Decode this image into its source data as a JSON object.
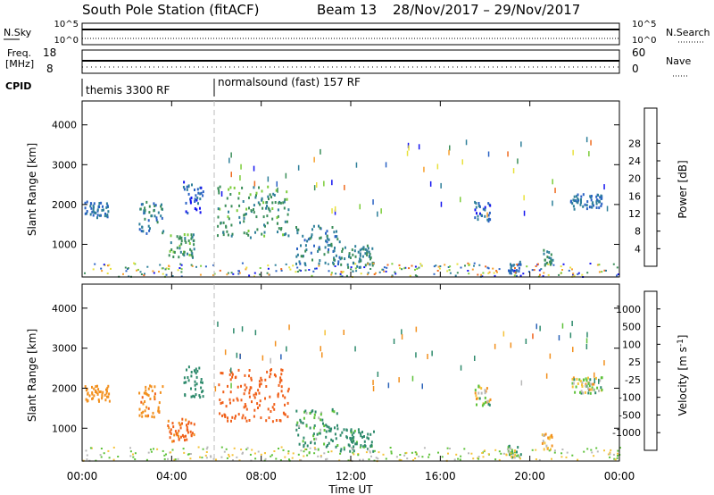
{
  "header": {
    "station": "South Pole Station (fitACF)",
    "beam": "Beam 13",
    "dates": "28/Nov/2017 – 29/Nov/2017"
  },
  "top_panels": {
    "nsky_label": "N.Sky",
    "nsky_ticks": [
      "10^5",
      "10^0"
    ],
    "nsearch_label": "N.Search",
    "nsearch_ticks": [
      "10^5",
      "10^0"
    ],
    "freq_label": "Freq.",
    "freq_unit": "[MHz]",
    "freq_ticks": [
      "18",
      "8"
    ],
    "nave_label": "Nave",
    "nave_ticks": [
      "60",
      "0"
    ],
    "cpid_label": "CPID",
    "cpid_segments": [
      {
        "label": "themis 3300 RF",
        "start_hour": 0
      },
      {
        "label": "normalsound (fast) 157 RF",
        "start_hour": 6
      }
    ]
  },
  "chart_data": [
    {
      "type": "heatmap",
      "title": "",
      "quantity": "Power",
      "xlabel": "Time UT",
      "ylabel": "Slant Range [km]",
      "xlim": [
        0,
        24
      ],
      "ylim": [
        180,
        4600
      ],
      "x_ticks": [
        "00:00",
        "04:00",
        "08:00",
        "12:00",
        "16:00",
        "20:00",
        "00:00"
      ],
      "y_ticks": [
        "1000",
        "2000",
        "3000",
        "4000"
      ],
      "colorbar": {
        "label": "Power [dB]",
        "ticks": [
          "4",
          "8",
          "12",
          "16",
          "20",
          "24",
          "28"
        ],
        "colors": [
          "#1515f0",
          "#2a62c4",
          "#2e7f9a",
          "#3b8e5a",
          "#7ccc3a",
          "#e8e13c",
          "#f7a02c",
          "#ef6a1e",
          "#e02a1a"
        ]
      },
      "echo_regions": [
        {
          "t_start": 0.1,
          "t_end": 1.2,
          "r_start": 1700,
          "r_end": 2100,
          "value": 8
        },
        {
          "t_start": 2.5,
          "t_end": 3.6,
          "r_start": 1300,
          "r_end": 2100,
          "value": 10
        },
        {
          "t_start": 3.8,
          "t_end": 5.0,
          "r_start": 700,
          "r_end": 1300,
          "value": 14
        },
        {
          "t_start": 4.5,
          "t_end": 5.4,
          "r_start": 1800,
          "r_end": 2600,
          "value": 6
        },
        {
          "t_start": 6.0,
          "t_end": 9.2,
          "r_start": 1200,
          "r_end": 2500,
          "value": 14
        },
        {
          "t_start": 9.5,
          "t_end": 11.5,
          "r_start": 500,
          "r_end": 1500,
          "value": 10
        },
        {
          "t_start": 11.5,
          "t_end": 13.0,
          "r_start": 450,
          "r_end": 1000,
          "value": 12
        },
        {
          "t_start": 17.5,
          "t_end": 18.2,
          "r_start": 1600,
          "r_end": 2100,
          "value": 6
        },
        {
          "t_start": 19.0,
          "t_end": 19.6,
          "r_start": 300,
          "r_end": 600,
          "value": 8
        },
        {
          "t_start": 20.5,
          "t_end": 21.0,
          "r_start": 500,
          "r_end": 900,
          "value": 12
        },
        {
          "t_start": 21.8,
          "t_end": 23.2,
          "r_start": 1900,
          "r_end": 2300,
          "value": 8
        }
      ]
    },
    {
      "type": "heatmap",
      "title": "",
      "quantity": "Velocity",
      "xlabel": "Time UT",
      "ylabel": "Slant Range [km]",
      "xlim": [
        0,
        24
      ],
      "ylim": [
        180,
        4600
      ],
      "x_ticks": [
        "00:00",
        "04:00",
        "08:00",
        "12:00",
        "16:00",
        "20:00",
        "00:00"
      ],
      "y_ticks": [
        "1000",
        "2000",
        "3000",
        "4000"
      ],
      "colorbar": {
        "label": "Velocity [m s^-1]",
        "ticks": [
          "1000",
          "500",
          "100",
          "25",
          "-25",
          "-100",
          "-500",
          "-1000"
        ],
        "colors": [
          "#1832cc",
          "#2a62b8",
          "#2e8a6c",
          "#5ec23a",
          "#b8b8b8",
          "#f5c33a",
          "#f2901e",
          "#f0601a",
          "#e01818"
        ]
      },
      "echo_regions": [
        {
          "t_start": 0.1,
          "t_end": 1.2,
          "r_start": 1700,
          "r_end": 2100,
          "value": -300
        },
        {
          "t_start": 2.5,
          "t_end": 3.6,
          "r_start": 1300,
          "r_end": 2100,
          "value": -400
        },
        {
          "t_start": 3.8,
          "t_end": 5.0,
          "r_start": 700,
          "r_end": 1300,
          "value": -600
        },
        {
          "t_start": 4.5,
          "t_end": 5.4,
          "r_start": 1800,
          "r_end": 2600,
          "value": 300
        },
        {
          "t_start": 6.0,
          "t_end": 9.2,
          "r_start": 1200,
          "r_end": 2500,
          "value": -700
        },
        {
          "t_start": 9.5,
          "t_end": 11.5,
          "r_start": 500,
          "r_end": 1500,
          "value": 150
        },
        {
          "t_start": 11.5,
          "t_end": 13.0,
          "r_start": 450,
          "r_end": 1000,
          "value": 200
        },
        {
          "t_start": 17.5,
          "t_end": 18.2,
          "r_start": 1600,
          "r_end": 2100,
          "value": 0
        },
        {
          "t_start": 19.0,
          "t_end": 19.6,
          "r_start": 300,
          "r_end": 600,
          "value": 80
        },
        {
          "t_start": 20.5,
          "t_end": 21.0,
          "r_start": 500,
          "r_end": 900,
          "value": -150
        },
        {
          "t_start": 21.8,
          "t_end": 23.2,
          "r_start": 1900,
          "r_end": 2300,
          "value": 0
        }
      ]
    }
  ]
}
